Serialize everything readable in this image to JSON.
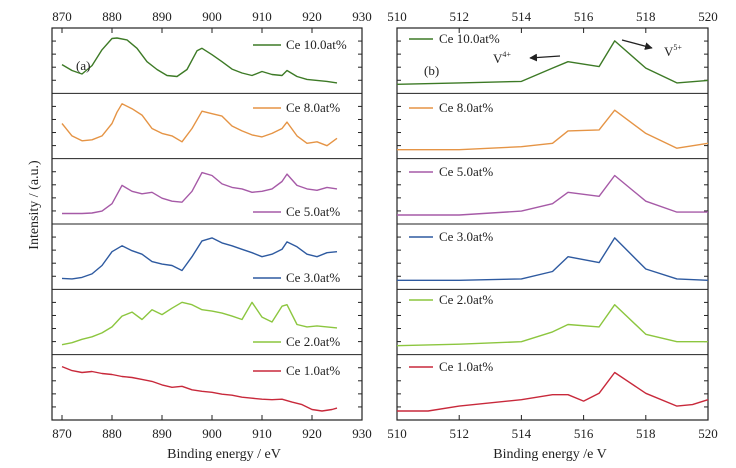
{
  "figure": {
    "ylabel": "Intensity / (a.u.)",
    "left_xlabel": "Binding energy / eV",
    "right_xlabel": "Binding energy /e V",
    "left_panel_label": "(a)",
    "right_panel_label": "(b)",
    "annotation_v4": "V",
    "annotation_v4_sup": "4+",
    "annotation_v5": "V",
    "annotation_v5_sup": "5+"
  },
  "chart_data": [
    {
      "type": "line",
      "panel": "a",
      "xlabel": "Binding energy / eV",
      "ylabel": "Intensity / (a.u.)",
      "xlim": [
        868,
        930
      ],
      "xticks": [
        870,
        880,
        890,
        900,
        910,
        920,
        930
      ],
      "stacked": true,
      "series": [
        {
          "name": "Ce 10.0at%",
          "color": "#3d7a26",
          "x": [
            870,
            872,
            874,
            876,
            878,
            880,
            881,
            883,
            885,
            887,
            889,
            891,
            893,
            895,
            897,
            898,
            900,
            902,
            904,
            906,
            908,
            910,
            912,
            914,
            915,
            917,
            919,
            921,
            923,
            925
          ],
          "y": [
            0.42,
            0.3,
            0.23,
            0.4,
            0.72,
            0.95,
            0.96,
            0.92,
            0.75,
            0.48,
            0.32,
            0.2,
            0.18,
            0.32,
            0.7,
            0.75,
            0.62,
            0.48,
            0.33,
            0.25,
            0.2,
            0.28,
            0.22,
            0.2,
            0.3,
            0.18,
            0.12,
            0.1,
            0.08,
            0.05
          ]
        },
        {
          "name": "Ce 8.0at%",
          "color": "#e59445",
          "x": [
            870,
            872,
            874,
            876,
            878,
            880,
            881,
            882,
            884,
            886,
            888,
            890,
            892,
            894,
            896,
            898,
            900,
            902,
            904,
            906,
            908,
            910,
            912,
            914,
            915,
            917,
            919,
            921,
            923,
            925
          ],
          "y": [
            0.55,
            0.3,
            0.2,
            0.22,
            0.3,
            0.55,
            0.78,
            0.95,
            0.85,
            0.72,
            0.45,
            0.35,
            0.3,
            0.18,
            0.45,
            0.8,
            0.75,
            0.7,
            0.5,
            0.4,
            0.32,
            0.28,
            0.35,
            0.45,
            0.58,
            0.3,
            0.15,
            0.18,
            0.1,
            0.25
          ]
        },
        {
          "name": "Ce 5.0at%",
          "color": "#a65aa7",
          "x": [
            870,
            872,
            874,
            876,
            878,
            880,
            882,
            884,
            886,
            888,
            890,
            892,
            894,
            896,
            898,
            900,
            902,
            904,
            906,
            908,
            910,
            912,
            914,
            915,
            917,
            919,
            921,
            923,
            925
          ],
          "y": [
            0.05,
            0.05,
            0.05,
            0.06,
            0.1,
            0.25,
            0.62,
            0.5,
            0.45,
            0.48,
            0.36,
            0.3,
            0.28,
            0.5,
            0.88,
            0.82,
            0.65,
            0.58,
            0.55,
            0.48,
            0.5,
            0.55,
            0.7,
            0.85,
            0.62,
            0.55,
            0.52,
            0.58,
            0.55
          ]
        },
        {
          "name": "Ce 3.0at%",
          "color": "#2e5aa0",
          "x": [
            870,
            872,
            874,
            876,
            878,
            880,
            882,
            884,
            886,
            888,
            890,
            892,
            894,
            896,
            898,
            900,
            902,
            904,
            906,
            908,
            910,
            912,
            914,
            915,
            917,
            919,
            921,
            923,
            925
          ],
          "y": [
            0.06,
            0.05,
            0.08,
            0.15,
            0.32,
            0.6,
            0.72,
            0.62,
            0.55,
            0.4,
            0.35,
            0.32,
            0.22,
            0.5,
            0.82,
            0.88,
            0.78,
            0.72,
            0.65,
            0.58,
            0.5,
            0.55,
            0.65,
            0.8,
            0.7,
            0.55,
            0.5,
            0.58,
            0.6
          ]
        },
        {
          "name": "Ce 2.0at%",
          "color": "#8cc63f",
          "x": [
            870,
            872,
            874,
            876,
            878,
            880,
            882,
            884,
            886,
            888,
            890,
            892,
            894,
            896,
            898,
            900,
            902,
            904,
            906,
            908,
            910,
            912,
            914,
            915,
            917,
            919,
            921,
            923,
            925
          ],
          "y": [
            0.04,
            0.08,
            0.15,
            0.2,
            0.28,
            0.4,
            0.62,
            0.7,
            0.55,
            0.75,
            0.65,
            0.78,
            0.9,
            0.85,
            0.75,
            0.72,
            0.68,
            0.62,
            0.55,
            0.9,
            0.6,
            0.5,
            0.82,
            0.85,
            0.45,
            0.4,
            0.42,
            0.4,
            0.38
          ]
        },
        {
          "name": "Ce 1.0at%",
          "color": "#c8293b",
          "x": [
            870,
            872,
            874,
            876,
            878,
            880,
            882,
            884,
            886,
            888,
            890,
            892,
            894,
            896,
            898,
            900,
            902,
            904,
            906,
            908,
            910,
            912,
            914,
            916,
            918,
            920,
            922,
            924,
            925
          ],
          "y": [
            0.92,
            0.84,
            0.8,
            0.82,
            0.78,
            0.76,
            0.72,
            0.7,
            0.66,
            0.62,
            0.55,
            0.5,
            0.52,
            0.45,
            0.42,
            0.4,
            0.36,
            0.34,
            0.3,
            0.28,
            0.26,
            0.25,
            0.26,
            0.2,
            0.15,
            0.05,
            0.02,
            0.05,
            0.08
          ]
        }
      ]
    },
    {
      "type": "line",
      "panel": "b",
      "xlabel": "Binding energy /e V",
      "xlim": [
        510,
        520
      ],
      "xticks": [
        510,
        512,
        514,
        516,
        518,
        520
      ],
      "stacked": true,
      "series": [
        {
          "name": "Ce 10.0at%",
          "color": "#3d7a26",
          "x": [
            510,
            512,
            514,
            515,
            515.5,
            516.5,
            517,
            518,
            519,
            520
          ],
          "y": [
            0.02,
            0.05,
            0.08,
            0.35,
            0.48,
            0.38,
            0.9,
            0.35,
            0.05,
            0.1
          ]
        },
        {
          "name": "Ce 8.0at%",
          "color": "#e59445",
          "x": [
            510,
            512,
            514,
            515,
            515.5,
            516.5,
            517,
            518,
            519,
            520
          ],
          "y": [
            0.02,
            0.02,
            0.08,
            0.15,
            0.4,
            0.42,
            0.82,
            0.35,
            0.05,
            0.15
          ]
        },
        {
          "name": "Ce 5.0at%",
          "color": "#a65aa7",
          "x": [
            510,
            512,
            514,
            515,
            515.5,
            516.5,
            517,
            518,
            519,
            520
          ],
          "y": [
            0.02,
            0.02,
            0.1,
            0.25,
            0.48,
            0.4,
            0.82,
            0.3,
            0.08,
            0.08
          ]
        },
        {
          "name": "Ce 3.0at%",
          "color": "#2e5aa0",
          "x": [
            510,
            512,
            514,
            515,
            515.5,
            516.5,
            517,
            518,
            519,
            520
          ],
          "y": [
            0.02,
            0.02,
            0.05,
            0.2,
            0.5,
            0.38,
            0.88,
            0.25,
            0.05,
            0.02
          ]
        },
        {
          "name": "Ce 2.0at%",
          "color": "#8cc63f",
          "x": [
            510,
            512,
            514,
            515,
            515.5,
            516.5,
            517,
            518,
            519,
            520
          ],
          "y": [
            0.02,
            0.05,
            0.1,
            0.3,
            0.45,
            0.4,
            0.85,
            0.25,
            0.1,
            0.1
          ]
        },
        {
          "name": "Ce 1.0at%",
          "color": "#c8293b",
          "x": [
            510,
            511,
            512,
            514,
            515,
            515.5,
            516,
            516.5,
            517,
            518,
            519,
            519.5,
            520
          ],
          "y": [
            0.02,
            0.02,
            0.12,
            0.25,
            0.35,
            0.35,
            0.22,
            0.38,
            0.8,
            0.38,
            0.12,
            0.15,
            0.25
          ]
        }
      ]
    }
  ]
}
